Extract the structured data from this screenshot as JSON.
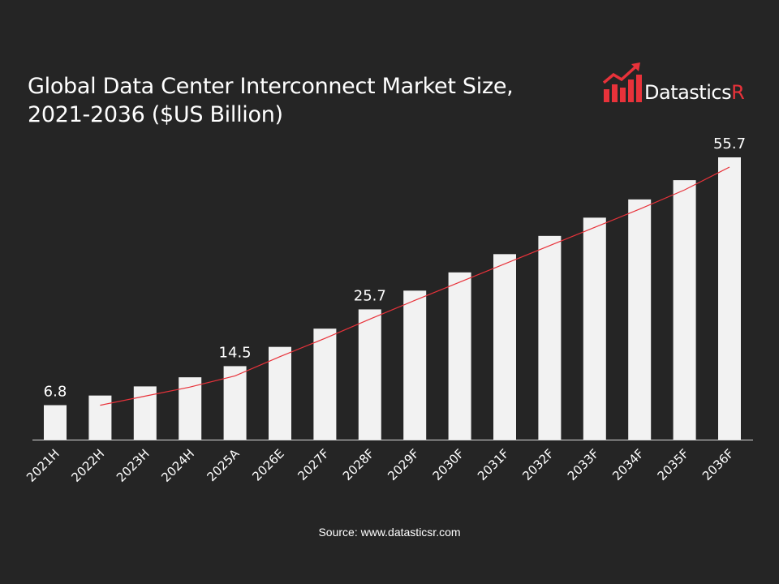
{
  "title": "Global Data Center Interconnect Market Size, 2021-2036 ($US Billion)",
  "source": "Source: www.datasticsr.com",
  "logo": {
    "text_main": "Datastics",
    "text_accent": "R"
  },
  "colors": {
    "background": "#252525",
    "bar": "#f2f2f2",
    "trend": "#e8323a",
    "axis": "#ffffff"
  },
  "chart_data": {
    "type": "bar",
    "categories": [
      "2021H",
      "2022H",
      "2023H",
      "2024H",
      "2025A",
      "2026E",
      "2027F",
      "2028F",
      "2029F",
      "2030F",
      "2031F",
      "2032F",
      "2033F",
      "2034F",
      "2035F",
      "2036F"
    ],
    "values": [
      6.8,
      8.7,
      10.5,
      12.3,
      14.5,
      18.3,
      21.9,
      25.7,
      29.4,
      33.0,
      36.6,
      40.2,
      43.8,
      47.4,
      51.2,
      55.7
    ],
    "data_labels": {
      "2021H": "6.8",
      "2025A": "14.5",
      "2028F": "25.7",
      "2036F": "55.7"
    },
    "trendline": {
      "type": "line",
      "color": "#e8323a",
      "from_category": "2022H",
      "to_category": "2036F"
    },
    "ylim": [
      0,
      60
    ],
    "grid": false,
    "legend": "none"
  }
}
